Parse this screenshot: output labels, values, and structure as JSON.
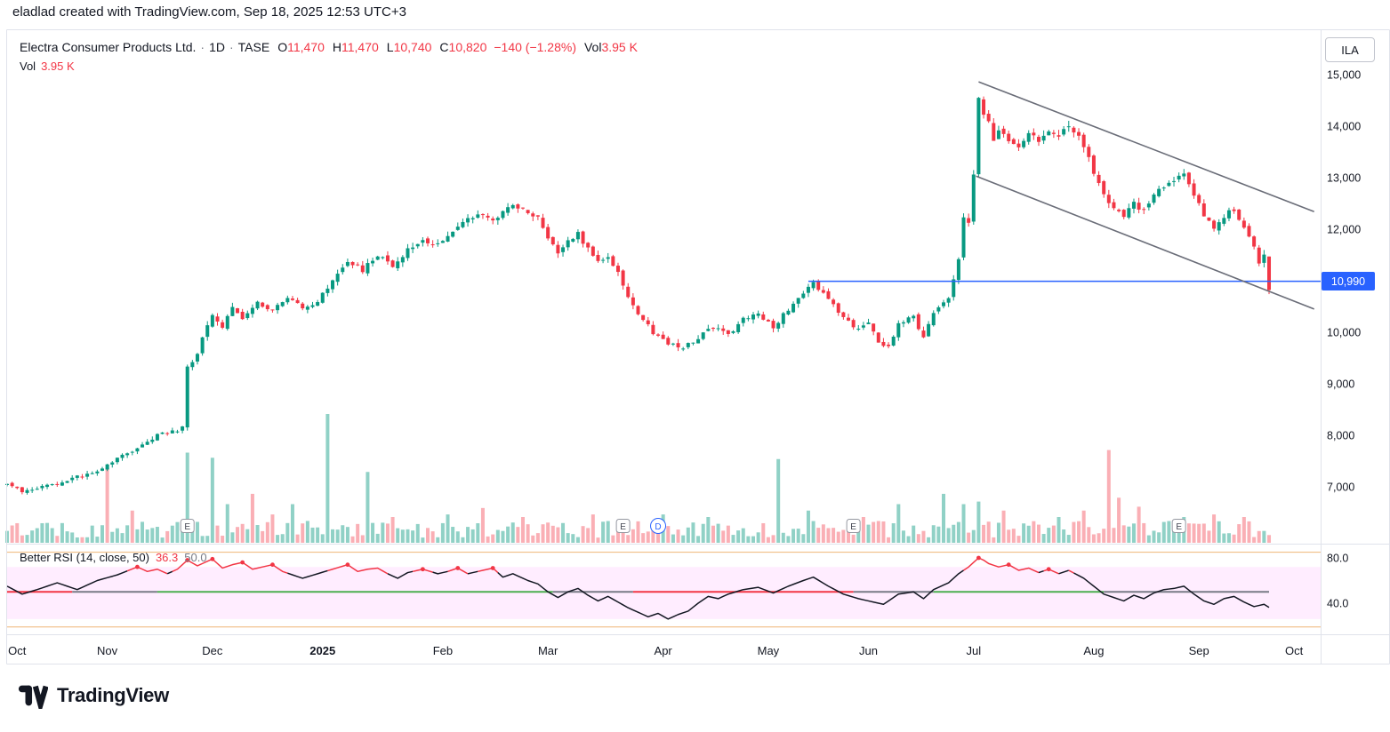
{
  "attribution": "eladlad created with TradingView.com, Sep 18, 2025 12:53 UTC+3",
  "header": {
    "symbol": "Electra Consumer Products Ltd.",
    "sep": "·",
    "timeframe": "1D",
    "exchange": "TASE",
    "o_label": "O",
    "o": "11,470",
    "h_label": "H",
    "h": "11,470",
    "l_label": "L",
    "l": "10,740",
    "c_label": "C",
    "c": "10,820",
    "change": "−140 (−1.28%)",
    "vol_label": "Vol",
    "vol": "3.95 K"
  },
  "legend_row2": {
    "vol_label": "Vol",
    "vol": "3.95 K"
  },
  "right_axis": {
    "currency_badge": "ILA",
    "price_badge": {
      "label": "10,990",
      "value": 10990
    },
    "price_labels": [
      {
        "label": "15,000",
        "value": 15000
      },
      {
        "label": "14,000",
        "value": 14000
      },
      {
        "label": "13,000",
        "value": 13000
      },
      {
        "label": "12,000",
        "value": 12000
      },
      {
        "label": "10,000",
        "value": 10000
      },
      {
        "label": "9,000",
        "value": 9000
      },
      {
        "label": "8,000",
        "value": 8000
      },
      {
        "label": "7,000",
        "value": 7000
      }
    ]
  },
  "x_axis": {
    "labels": [
      {
        "label": "Oct",
        "day": 2,
        "bold": false
      },
      {
        "label": "Nov",
        "day": 20,
        "bold": false
      },
      {
        "label": "Dec",
        "day": 41,
        "bold": false
      },
      {
        "label": "2025",
        "day": 63,
        "bold": true
      },
      {
        "label": "Feb",
        "day": 87,
        "bold": false
      },
      {
        "label": "Mar",
        "day": 108,
        "bold": false
      },
      {
        "label": "Apr",
        "day": 131,
        "bold": false
      },
      {
        "label": "May",
        "day": 152,
        "bold": false
      },
      {
        "label": "Jun",
        "day": 172,
        "bold": false
      },
      {
        "label": "Jul",
        "day": 193,
        "bold": false
      },
      {
        "label": "Aug",
        "day": 217,
        "bold": false
      },
      {
        "label": "Sep",
        "day": 238,
        "bold": false
      },
      {
        "label": "Oct",
        "day": 257,
        "bold": false
      }
    ]
  },
  "rsi_pane": {
    "title": "Better RSI (14, close, 50)",
    "value": "36.3",
    "value2": "50.0",
    "axis_labels": [
      {
        "label": "80.0",
        "value": 80
      },
      {
        "label": "40.0",
        "value": 40
      }
    ]
  },
  "logo": {
    "text": "TradingView"
  },
  "chart_data": {
    "type": "candlestick",
    "title": "Electra Consumer Products Ltd. · 1D · TASE",
    "timeframe": "1D",
    "time_range": "Oct 2024 – Oct 2025, daily bars",
    "price_axis_range": [
      6500,
      15300
    ],
    "last_candle": {
      "open": 11470,
      "high": 11470,
      "low": 10740,
      "close": 10820,
      "volume": "3.95 K"
    },
    "price_path": [
      [
        0,
        7050
      ],
      [
        3,
        6900
      ],
      [
        6,
        6980
      ],
      [
        10,
        7050
      ],
      [
        14,
        7200
      ],
      [
        18,
        7300
      ],
      [
        22,
        7550
      ],
      [
        26,
        7750
      ],
      [
        30,
        8000
      ],
      [
        34,
        8100
      ],
      [
        35,
        8150
      ],
      [
        36,
        9300
      ],
      [
        38,
        9600
      ],
      [
        39,
        9900
      ],
      [
        41,
        10350
      ],
      [
        43,
        10100
      ],
      [
        45,
        10450
      ],
      [
        47,
        10250
      ],
      [
        50,
        10600
      ],
      [
        53,
        10400
      ],
      [
        56,
        10700
      ],
      [
        59,
        10450
      ],
      [
        62,
        10600
      ],
      [
        65,
        11000
      ],
      [
        68,
        11400
      ],
      [
        71,
        11200
      ],
      [
        74,
        11500
      ],
      [
        77,
        11300
      ],
      [
        80,
        11600
      ],
      [
        83,
        11800
      ],
      [
        86,
        11700
      ],
      [
        90,
        12050
      ],
      [
        94,
        12300
      ],
      [
        97,
        12150
      ],
      [
        101,
        12480
      ],
      [
        104,
        12300
      ],
      [
        106,
        12200
      ],
      [
        108,
        11850
      ],
      [
        110,
        11550
      ],
      [
        112,
        11750
      ],
      [
        114,
        11900
      ],
      [
        116,
        11600
      ],
      [
        118,
        11350
      ],
      [
        120,
        11500
      ],
      [
        122,
        11150
      ],
      [
        124,
        10700
      ],
      [
        126,
        10350
      ],
      [
        129,
        10000
      ],
      [
        132,
        9800
      ],
      [
        135,
        9700
      ],
      [
        138,
        9900
      ],
      [
        141,
        10100
      ],
      [
        144,
        9950
      ],
      [
        147,
        10250
      ],
      [
        150,
        10350
      ],
      [
        153,
        10100
      ],
      [
        156,
        10450
      ],
      [
        159,
        10750
      ],
      [
        161,
        10950
      ],
      [
        164,
        10650
      ],
      [
        167,
        10300
      ],
      [
        170,
        10050
      ],
      [
        172,
        10150
      ],
      [
        174,
        9800
      ],
      [
        176,
        9700
      ],
      [
        178,
        10200
      ],
      [
        181,
        10300
      ],
      [
        183,
        9900
      ],
      [
        185,
        10400
      ],
      [
        188,
        10700
      ],
      [
        190,
        11400
      ],
      [
        191,
        12200
      ],
      [
        192,
        12150
      ],
      [
        193,
        13100
      ],
      [
        194,
        14600
      ],
      [
        195,
        14200
      ],
      [
        196,
        14050
      ],
      [
        197,
        13700
      ],
      [
        198,
        13900
      ],
      [
        200,
        13750
      ],
      [
        202,
        13600
      ],
      [
        204,
        13850
      ],
      [
        206,
        13700
      ],
      [
        208,
        13950
      ],
      [
        210,
        13800
      ],
      [
        212,
        14000
      ],
      [
        214,
        13800
      ],
      [
        215,
        13600
      ],
      [
        217,
        13100
      ],
      [
        219,
        12650
      ],
      [
        221,
        12400
      ],
      [
        223,
        12250
      ],
      [
        225,
        12500
      ],
      [
        227,
        12350
      ],
      [
        229,
        12700
      ],
      [
        231,
        12850
      ],
      [
        233,
        12950
      ],
      [
        235,
        13100
      ],
      [
        237,
        12700
      ],
      [
        239,
        12250
      ],
      [
        241,
        12000
      ],
      [
        243,
        12250
      ],
      [
        245,
        12400
      ],
      [
        247,
        12000
      ],
      [
        249,
        11650
      ],
      [
        250,
        11350
      ],
      [
        251,
        11470
      ],
      [
        252,
        10820
      ]
    ],
    "volume_spikes": [
      {
        "day": 20,
        "h": 0.58,
        "dir": "down"
      },
      {
        "day": 25,
        "h": 0.25,
        "dir": "down"
      },
      {
        "day": 36,
        "h": 0.7,
        "dir": "up"
      },
      {
        "day": 41,
        "h": 0.66,
        "dir": "up"
      },
      {
        "day": 44,
        "h": 0.3,
        "dir": "up"
      },
      {
        "day": 49,
        "h": 0.38,
        "dir": "down"
      },
      {
        "day": 53,
        "h": 0.22,
        "dir": "down"
      },
      {
        "day": 57,
        "h": 0.3,
        "dir": "up"
      },
      {
        "day": 64,
        "h": 1.0,
        "dir": "up"
      },
      {
        "day": 72,
        "h": 0.55,
        "dir": "up"
      },
      {
        "day": 77,
        "h": 0.2,
        "dir": "down"
      },
      {
        "day": 88,
        "h": 0.22,
        "dir": "up"
      },
      {
        "day": 95,
        "h": 0.27,
        "dir": "down"
      },
      {
        "day": 103,
        "h": 0.2,
        "dir": "down"
      },
      {
        "day": 117,
        "h": 0.22,
        "dir": "down"
      },
      {
        "day": 131,
        "h": 0.22,
        "dir": "up"
      },
      {
        "day": 140,
        "h": 0.2,
        "dir": "up"
      },
      {
        "day": 154,
        "h": 0.65,
        "dir": "up"
      },
      {
        "day": 160,
        "h": 0.25,
        "dir": "up"
      },
      {
        "day": 171,
        "h": 0.2,
        "dir": "down"
      },
      {
        "day": 178,
        "h": 0.3,
        "dir": "up"
      },
      {
        "day": 187,
        "h": 0.38,
        "dir": "up"
      },
      {
        "day": 191,
        "h": 0.3,
        "dir": "up"
      },
      {
        "day": 194,
        "h": 0.32,
        "dir": "up"
      },
      {
        "day": 199,
        "h": 0.25,
        "dir": "down"
      },
      {
        "day": 210,
        "h": 0.2,
        "dir": "up"
      },
      {
        "day": 215,
        "h": 0.25,
        "dir": "down"
      },
      {
        "day": 220,
        "h": 0.72,
        "dir": "down"
      },
      {
        "day": 222,
        "h": 0.35,
        "dir": "down"
      },
      {
        "day": 226,
        "h": 0.28,
        "dir": "down"
      },
      {
        "day": 235,
        "h": 0.2,
        "dir": "up"
      },
      {
        "day": 241,
        "h": 0.22,
        "dir": "down"
      },
      {
        "day": 247,
        "h": 0.2,
        "dir": "down"
      },
      {
        "day": 252,
        "h": 0.06,
        "dir": "down"
      }
    ],
    "rsi": {
      "current": 36.3,
      "red_threshold": 68,
      "midline": 50,
      "band": [
        26,
        72
      ],
      "guide_lines": [
        85,
        19
      ],
      "path": [
        [
          0,
          55
        ],
        [
          3,
          48
        ],
        [
          6,
          52
        ],
        [
          10,
          58
        ],
        [
          14,
          52
        ],
        [
          18,
          60
        ],
        [
          22,
          65
        ],
        [
          26,
          72
        ],
        [
          28,
          68
        ],
        [
          30,
          70
        ],
        [
          32,
          66
        ],
        [
          34,
          70
        ],
        [
          36,
          78
        ],
        [
          38,
          73
        ],
        [
          41,
          79
        ],
        [
          43,
          71
        ],
        [
          45,
          74
        ],
        [
          47,
          76
        ],
        [
          49,
          70
        ],
        [
          51,
          72
        ],
        [
          53,
          74
        ],
        [
          55,
          68
        ],
        [
          57,
          65
        ],
        [
          59,
          62
        ],
        [
          62,
          66
        ],
        [
          65,
          70
        ],
        [
          68,
          74
        ],
        [
          70,
          68
        ],
        [
          72,
          70
        ],
        [
          74,
          71
        ],
        [
          76,
          66
        ],
        [
          78,
          62
        ],
        [
          80,
          67
        ],
        [
          83,
          70
        ],
        [
          86,
          66
        ],
        [
          88,
          68
        ],
        [
          90,
          71
        ],
        [
          92,
          66
        ],
        [
          94,
          68
        ],
        [
          97,
          71
        ],
        [
          99,
          63
        ],
        [
          101,
          66
        ],
        [
          104,
          60
        ],
        [
          106,
          57
        ],
        [
          108,
          50
        ],
        [
          110,
          45
        ],
        [
          112,
          50
        ],
        [
          114,
          53
        ],
        [
          116,
          47
        ],
        [
          118,
          42
        ],
        [
          120,
          46
        ],
        [
          122,
          41
        ],
        [
          124,
          36
        ],
        [
          126,
          32
        ],
        [
          128,
          28
        ],
        [
          130,
          31
        ],
        [
          132,
          26
        ],
        [
          134,
          30
        ],
        [
          136,
          33
        ],
        [
          138,
          40
        ],
        [
          140,
          46
        ],
        [
          142,
          44
        ],
        [
          144,
          48
        ],
        [
          147,
          52
        ],
        [
          150,
          54
        ],
        [
          153,
          49
        ],
        [
          156,
          55
        ],
        [
          159,
          60
        ],
        [
          161,
          63
        ],
        [
          164,
          55
        ],
        [
          167,
          48
        ],
        [
          170,
          44
        ],
        [
          173,
          41
        ],
        [
          175,
          39
        ],
        [
          178,
          48
        ],
        [
          181,
          50
        ],
        [
          183,
          44
        ],
        [
          185,
          52
        ],
        [
          188,
          58
        ],
        [
          190,
          66
        ],
        [
          192,
          72
        ],
        [
          194,
          80
        ],
        [
          195,
          78
        ],
        [
          196,
          75
        ],
        [
          198,
          72
        ],
        [
          200,
          74
        ],
        [
          202,
          69
        ],
        [
          204,
          71
        ],
        [
          206,
          67
        ],
        [
          208,
          70
        ],
        [
          210,
          66
        ],
        [
          212,
          69
        ],
        [
          215,
          62
        ],
        [
          217,
          55
        ],
        [
          219,
          48
        ],
        [
          221,
          45
        ],
        [
          223,
          42
        ],
        [
          225,
          47
        ],
        [
          227,
          44
        ],
        [
          229,
          49
        ],
        [
          231,
          52
        ],
        [
          233,
          53
        ],
        [
          235,
          55
        ],
        [
          237,
          48
        ],
        [
          239,
          42
        ],
        [
          241,
          39
        ],
        [
          243,
          44
        ],
        [
          245,
          46
        ],
        [
          247,
          41
        ],
        [
          249,
          37
        ],
        [
          251,
          39
        ],
        [
          252,
          36.3
        ]
      ],
      "overbought_dots_days": [
        26,
        36,
        41,
        47,
        53,
        68,
        83,
        90,
        97,
        194,
        200,
        208
      ],
      "midline_segments": [
        [
          0,
          13,
          "down"
        ],
        [
          13,
          30,
          "neutral"
        ],
        [
          30,
          109,
          "up"
        ],
        [
          109,
          125,
          "neutral"
        ],
        [
          125,
          169,
          "down"
        ],
        [
          169,
          185,
          "neutral"
        ],
        [
          185,
          219,
          "up"
        ],
        [
          219,
          252,
          "neutral"
        ]
      ]
    },
    "horizontal_line": {
      "price": 10990,
      "from_day": 160
    },
    "channel": {
      "upper": [
        [
          194,
          14860
        ],
        [
          261,
          12340
        ]
      ],
      "lower": [
        [
          193.5,
          13030
        ],
        [
          261,
          10450
        ]
      ]
    },
    "markers": {
      "earnings_days": [
        36,
        123,
        169,
        234
      ],
      "dividend_day": 130
    },
    "colors": {
      "up": "#089981",
      "down": "#f23645",
      "volume_up": "rgba(8,153,129,0.45)",
      "volume_down": "rgba(242,54,69,0.40)",
      "line_blue": "#2962ff",
      "channel": "#6a6d78",
      "rsi_line": "#131722",
      "rsi_red": "#f23645",
      "midline_up": "#4caf50",
      "midline_down": "#f23645",
      "midline_neutral": "#787b86",
      "band": "#ff00ff",
      "guide": "#e8963c",
      "frame": "#e0e3eb",
      "axis_text": "#131722"
    }
  }
}
